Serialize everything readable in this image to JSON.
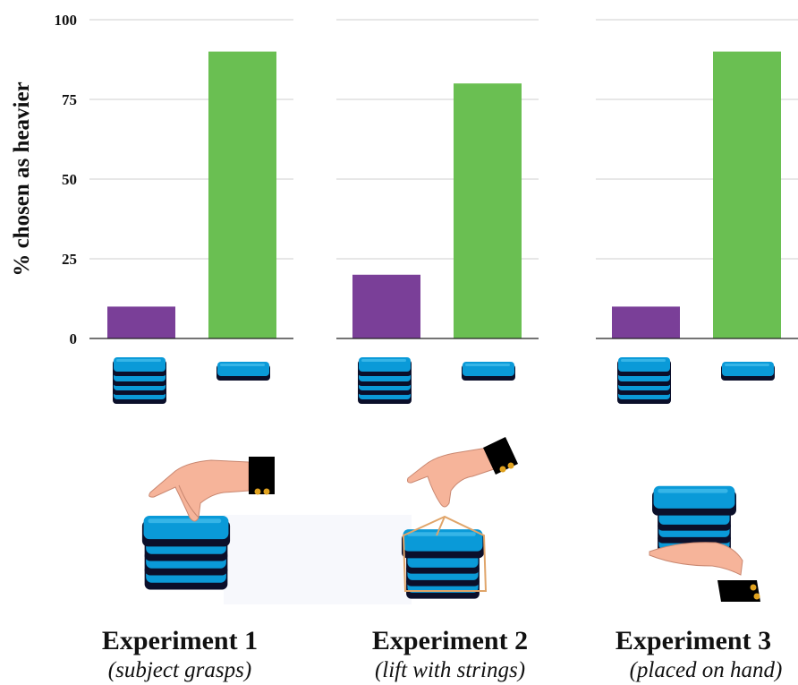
{
  "colors": {
    "stack": "#7a3f98",
    "single": "#6abf52",
    "block": "#0a9ad8",
    "skin": "#f6b49a",
    "grid": "#cfcfcf"
  },
  "chart_data": {
    "type": "bar",
    "ylabel": "% chosen as heavier",
    "ylim": [
      0,
      100
    ],
    "yticks": [
      0,
      25,
      50,
      75,
      100
    ],
    "grid": true,
    "categories": [
      "stack of blocks",
      "single block"
    ],
    "panels": [
      {
        "experiment": "Experiment 1",
        "condition": "(subject grasps)",
        "values": [
          10,
          90
        ]
      },
      {
        "experiment": "Experiment 2",
        "condition": "(lift with strings)",
        "values": [
          20,
          80
        ]
      },
      {
        "experiment": "Experiment 3",
        "condition": "(placed on hand)",
        "values": [
          10,
          90
        ]
      }
    ]
  }
}
